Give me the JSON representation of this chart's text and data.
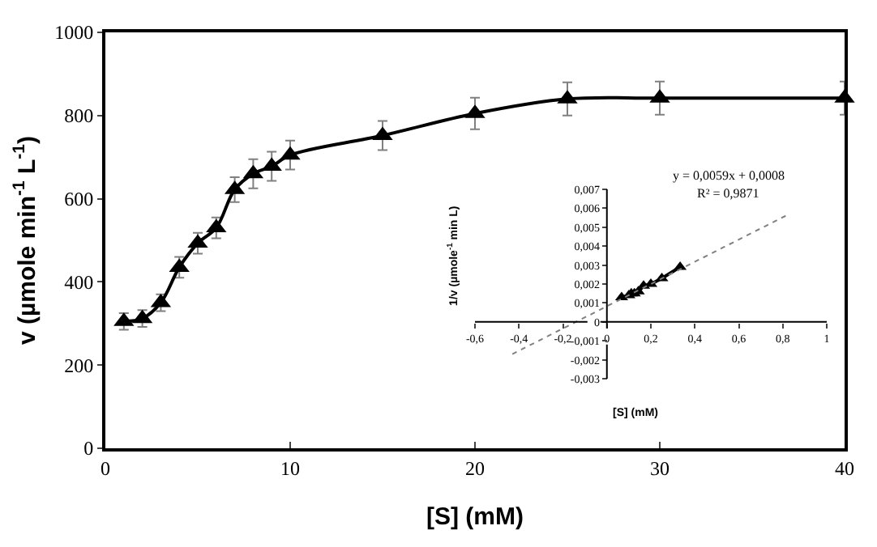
{
  "chart_data": [
    {
      "type": "line",
      "xlabel": "[S] (mM)",
      "ylabel": "v (µmole min$^{-1}$ L$^{-1}$)",
      "xlim": [
        0,
        40
      ],
      "xticks": [
        0,
        10,
        20,
        30,
        40
      ],
      "ylim": [
        0,
        1000
      ],
      "yticks": [
        0,
        200,
        400,
        600,
        800,
        1000
      ],
      "grid": false,
      "marker": "triangle",
      "line_style": "solid",
      "series": [
        {
          "color": "#000000",
          "x": [
            1,
            2,
            3,
            4,
            5,
            6,
            7,
            8,
            9,
            10,
            15,
            20,
            25,
            30,
            40
          ],
          "values": [
            305,
            312,
            350,
            435,
            493,
            530,
            622,
            660,
            678,
            705,
            752,
            805,
            840,
            842,
            842
          ],
          "errors": [
            20,
            20,
            20,
            25,
            25,
            25,
            30,
            35,
            35,
            35,
            35,
            38,
            40,
            40,
            40
          ]
        }
      ]
    },
    {
      "type": "line",
      "xlabel": "[S] (mM)",
      "ylabel": "1/v (µmole$^{-1}$ min L)",
      "annotations": [
        "y = 0,0059x + 0,0008",
        "R² = 0,9871"
      ],
      "xlim": [
        -0.6,
        1
      ],
      "xticks": [
        {
          "value": -0.6,
          "label": "-0,6"
        },
        {
          "value": -0.4,
          "label": "-0,4"
        },
        {
          "value": -0.2,
          "label": "-0,2"
        },
        0,
        {
          "value": 0.2,
          "label": "0,2"
        },
        {
          "value": 0.4,
          "label": "0,4"
        },
        {
          "value": 0.6,
          "label": "0,6"
        },
        {
          "value": 0.8,
          "label": "0,8"
        },
        1
      ],
      "ylim": [
        -0.003,
        0.007
      ],
      "yticks": [
        {
          "value": -0.003,
          "label": "-0,003"
        },
        {
          "value": -0.002,
          "label": "-0,002"
        },
        {
          "value": -0.001,
          "label": "-0,001"
        },
        0,
        {
          "value": 0.001,
          "label": "0,001"
        },
        {
          "value": 0.002,
          "label": "0,002"
        },
        {
          "value": 0.003,
          "label": "0,003"
        },
        {
          "value": 0.004,
          "label": "0,004"
        },
        {
          "value": 0.005,
          "label": "0,005"
        },
        {
          "value": 0.006,
          "label": "0,006"
        },
        {
          "value": 0.007,
          "label": "0,007"
        }
      ],
      "grid": false,
      "series": [
        {
          "color": "#000000",
          "marker": "triangle",
          "line_style": "solid",
          "x": [
            0.067,
            0.1,
            0.111,
            0.125,
            0.143,
            0.167,
            0.2,
            0.25,
            0.333
          ],
          "values": [
            0.0013,
            0.0014,
            0.0015,
            0.0015,
            0.0016,
            0.0019,
            0.002,
            0.0023,
            0.0029
          ]
        },
        {
          "type": "line",
          "color": "#808080",
          "marker": "none",
          "line_style": "dotted",
          "x": [
            -0.43,
            0.83
          ],
          "values": [
            -0.0017,
            0.0057
          ]
        }
      ]
    }
  ]
}
